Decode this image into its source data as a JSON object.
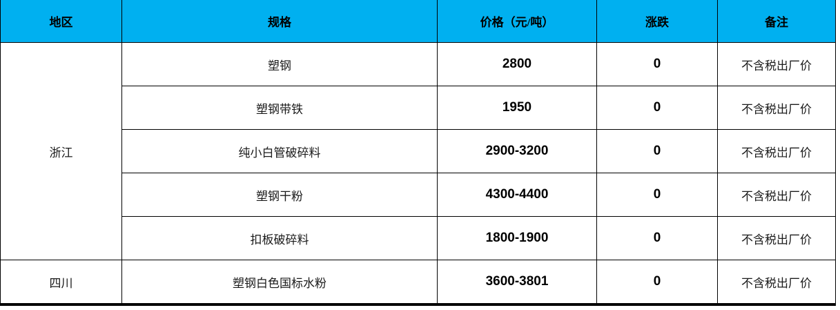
{
  "table": {
    "header_bg": "#00b0f0",
    "headers": {
      "region": "地区",
      "spec": "规格",
      "price": "价格（元/吨）",
      "change": "涨跌",
      "note": "备注"
    },
    "regions": {
      "zhejiang": "浙江",
      "sichuan": "四川"
    },
    "rows": [
      {
        "spec": "塑钢",
        "price": "2800",
        "change": "0",
        "note": "不含税出厂价"
      },
      {
        "spec": "塑钢带铁",
        "price": "1950",
        "change": "0",
        "note": "不含税出厂价"
      },
      {
        "spec": "纯小白管破碎料",
        "price": "2900-3200",
        "change": "0",
        "note": "不含税岀厂价"
      },
      {
        "spec": "塑钢干粉",
        "price": "4300-4400",
        "change": "0",
        "note": "不含税出厂价"
      },
      {
        "spec": "扣板破碎料",
        "price": "1800-1900",
        "change": "0",
        "note": "不含税出厂价"
      },
      {
        "spec": "塑钢白色国标水粉",
        "price": "3600-3801",
        "change": "0",
        "note": "不含税出厂价"
      }
    ]
  }
}
